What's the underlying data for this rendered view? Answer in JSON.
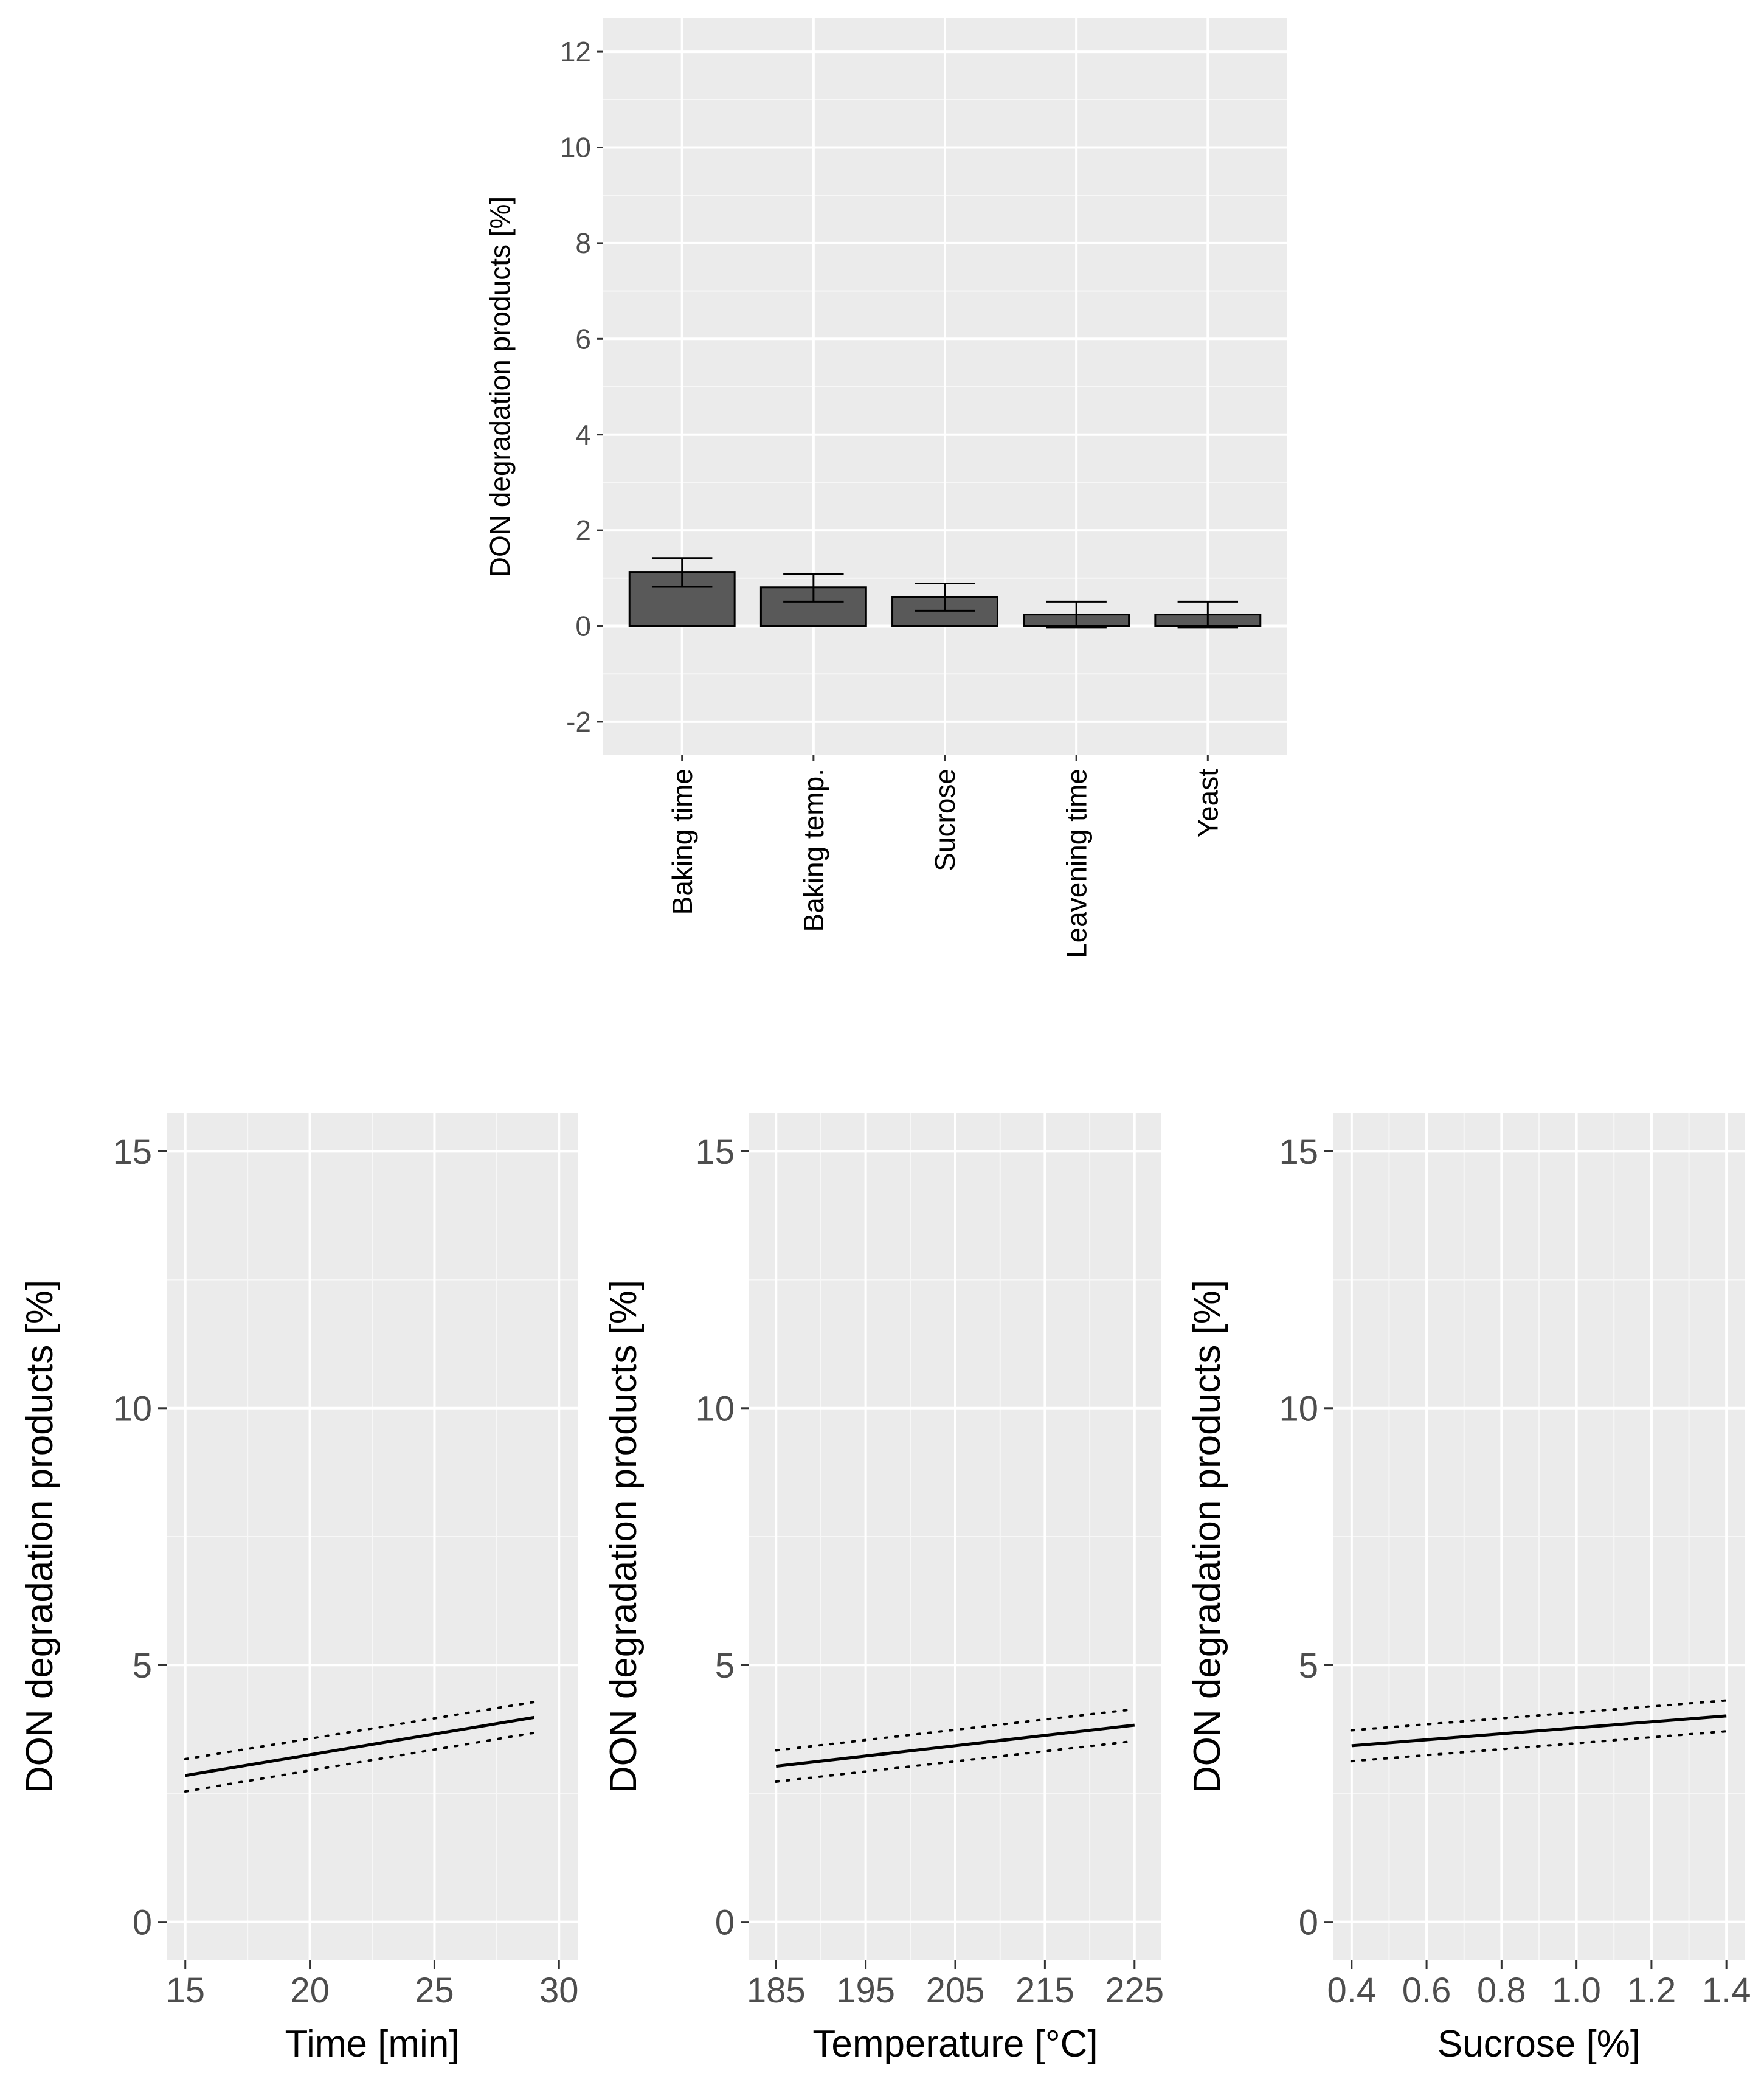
{
  "chart_data": [
    {
      "type": "bar",
      "title": "",
      "xlabel": "",
      "ylabel": "DON degradation products [%]",
      "ylim": [
        -2.7,
        12.7
      ],
      "yticks": [
        "-2",
        "0",
        "2",
        "4",
        "6",
        "8",
        "10",
        "12"
      ],
      "categories": [
        "Baking time",
        "Baking temp.",
        "Sucrose",
        "Leavening time",
        "Yeast"
      ],
      "values": [
        1.13,
        0.81,
        0.61,
        0.24,
        0.24
      ],
      "error_low": [
        0.82,
        0.51,
        0.32,
        -0.03,
        -0.03
      ],
      "error_high": [
        1.42,
        1.09,
        0.89,
        0.51,
        0.51
      ],
      "bar_color": "#595959"
    },
    {
      "type": "line",
      "xlabel": "Time [min]",
      "ylabel": "DON degradation products [%]",
      "xlim": [
        14.25,
        30.75
      ],
      "ylim": [
        -0.75,
        15.75
      ],
      "xticks": [
        "15",
        "20",
        "25",
        "30"
      ],
      "yticks": [
        "0",
        "5",
        "10",
        "15"
      ],
      "series": [
        {
          "name": "fit",
          "x": [
            15,
            29
          ],
          "y": [
            2.85,
            3.98
          ]
        },
        {
          "name": "upper",
          "x": [
            15,
            29
          ],
          "y": [
            3.17,
            4.28
          ]
        },
        {
          "name": "lower",
          "x": [
            15,
            29
          ],
          "y": [
            2.54,
            3.68
          ]
        }
      ]
    },
    {
      "type": "line",
      "xlabel": "Temperature [°C]",
      "ylabel": "DON degradation products [%]",
      "xlim": [
        182,
        228
      ],
      "ylim": [
        -0.75,
        15.75
      ],
      "xticks": [
        "185",
        "195",
        "205",
        "215",
        "225"
      ],
      "yticks": [
        "0",
        "5",
        "10",
        "15"
      ],
      "series": [
        {
          "name": "fit",
          "x": [
            185,
            225
          ],
          "y": [
            3.03,
            3.83
          ]
        },
        {
          "name": "upper",
          "x": [
            185,
            225
          ],
          "y": [
            3.34,
            4.14
          ]
        },
        {
          "name": "lower",
          "x": [
            185,
            225
          ],
          "y": [
            2.73,
            3.52
          ]
        }
      ]
    },
    {
      "type": "line",
      "xlabel": "Sucrose [%]",
      "ylabel": "DON degradation products [%]",
      "xlim": [
        0.35,
        1.45
      ],
      "ylim": [
        -0.75,
        15.75
      ],
      "xticks": [
        "0.4",
        "0.6",
        "0.8",
        "1.0",
        "1.2",
        "1.4"
      ],
      "yticks": [
        "0",
        "5",
        "10",
        "15"
      ],
      "series": [
        {
          "name": "fit",
          "x": [
            0.4,
            1.4
          ],
          "y": [
            3.43,
            4.01
          ]
        },
        {
          "name": "upper",
          "x": [
            0.4,
            1.4
          ],
          "y": [
            3.73,
            4.31
          ]
        },
        {
          "name": "lower",
          "x": [
            0.4,
            1.4
          ],
          "y": [
            3.13,
            3.71
          ]
        }
      ]
    }
  ]
}
